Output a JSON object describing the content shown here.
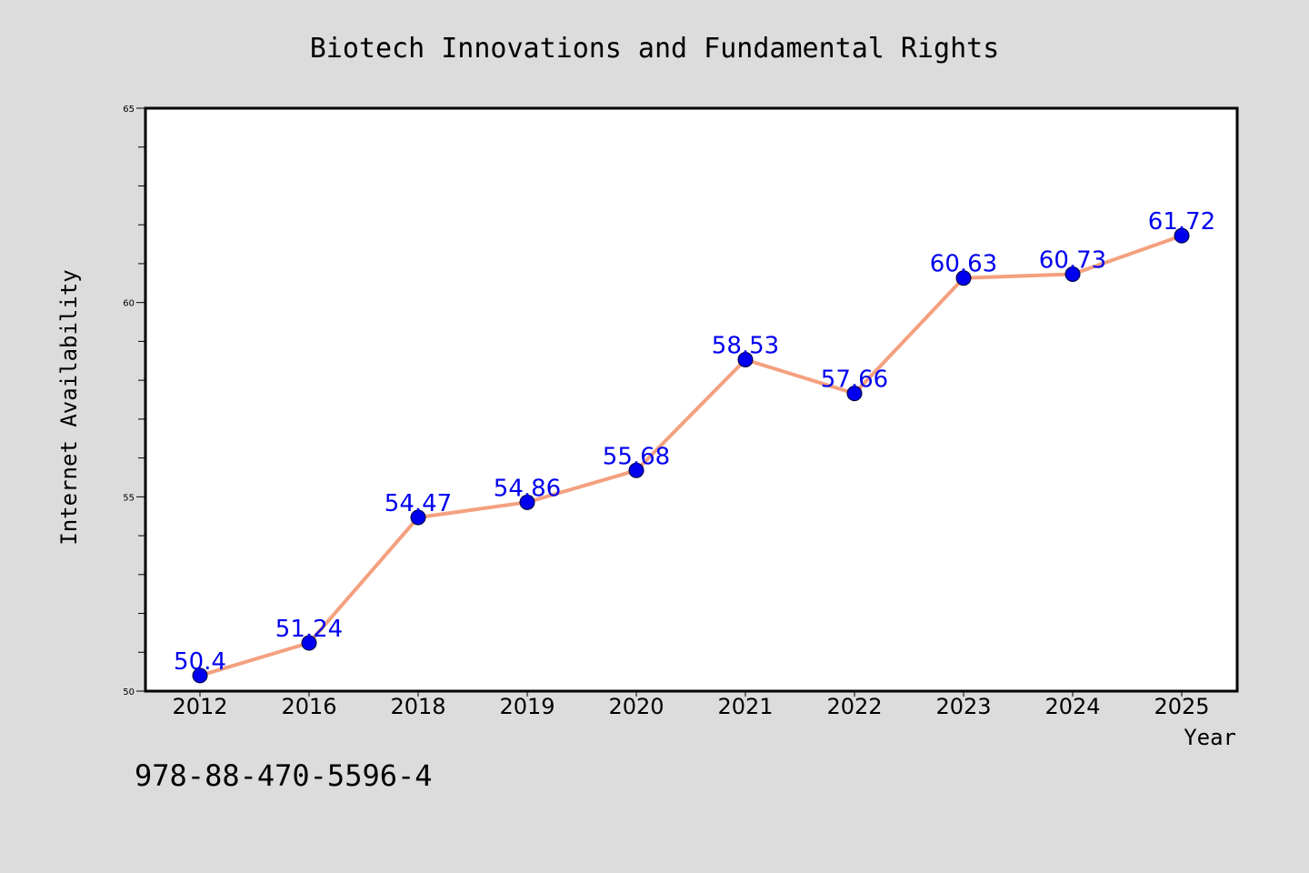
{
  "chart_data": {
    "type": "line",
    "title": "Biotech Innovations and Fundamental Rights",
    "xlabel": "Year",
    "ylabel": "Internet Availability",
    "categories": [
      "2012",
      "2016",
      "2018",
      "2019",
      "2020",
      "2021",
      "2022",
      "2023",
      "2024",
      "2025"
    ],
    "values": [
      50.4,
      51.24,
      54.47,
      54.86,
      55.68,
      58.53,
      57.66,
      60.63,
      60.73,
      61.72
    ],
    "data_labels": [
      "50.4",
      "51.24",
      "54.47",
      "54.86",
      "55.68",
      "58.53",
      "57.66",
      "60.63",
      "60.73",
      "61.72"
    ],
    "ylim": [
      50,
      65
    ],
    "y_ticks": [
      "50",
      "55",
      "60",
      "65"
    ],
    "grid": false,
    "legend": "none"
  },
  "footer": {
    "code": "978-88-470-5596-4"
  },
  "colors": {
    "background": "#dcdcdc",
    "plot_background": "#ffffff",
    "line": "#f4a07f",
    "marker": "#0000ee",
    "data_label": "#0000ee"
  }
}
